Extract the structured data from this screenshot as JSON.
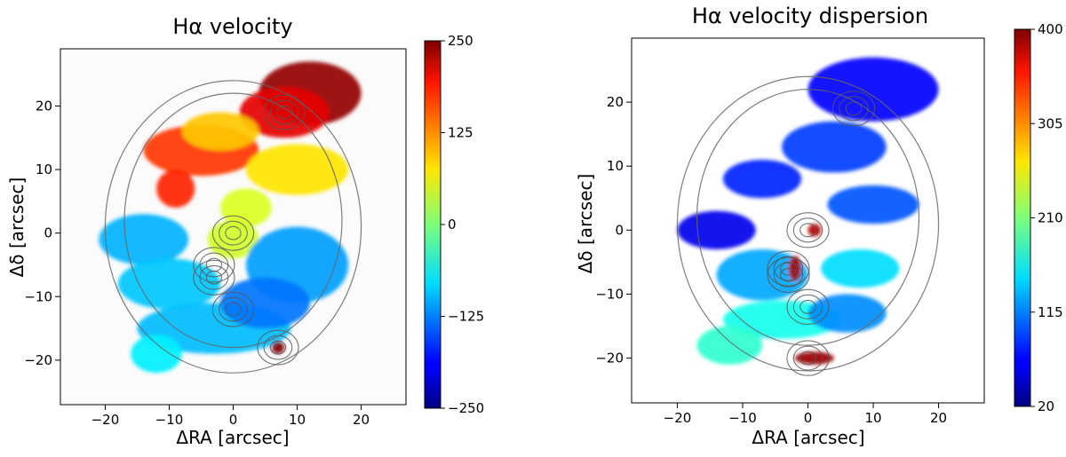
{
  "chart_data": [
    {
      "type": "heatmap",
      "title": "Hα velocity",
      "xlabel": "ΔRA [arcsec]",
      "ylabel": "Δδ [arcsec]",
      "xlim": [
        -27,
        27
      ],
      "ylim": [
        -27,
        29
      ],
      "xticks": [
        -20,
        -10,
        0,
        10,
        20
      ],
      "yticks": [
        -20,
        -10,
        0,
        10,
        20
      ],
      "colorbar": {
        "colormap": "jet",
        "min": -250,
        "max": 250,
        "ticks": [
          250,
          125,
          0,
          -125,
          -250
        ]
      },
      "grid": false,
      "contour_peaks": [
        [
          8,
          19
        ],
        [
          0,
          0
        ],
        [
          -3,
          -5
        ],
        [
          -3,
          -7
        ],
        [
          0,
          -12
        ],
        [
          7,
          -18
        ]
      ],
      "emission_regions": [
        {
          "x": 12,
          "y": 22,
          "rx": 8,
          "ry": 5,
          "value": 240
        },
        {
          "x": 8,
          "y": 19,
          "rx": 7,
          "ry": 4,
          "value": 200
        },
        {
          "x": -5,
          "y": 13,
          "rx": 9,
          "ry": 4,
          "value": 160
        },
        {
          "x": -9,
          "y": 7,
          "rx": 3,
          "ry": 3,
          "value": 170
        },
        {
          "x": -2,
          "y": 16,
          "rx": 6,
          "ry": 3,
          "value": 90
        },
        {
          "x": 10,
          "y": 10,
          "rx": 8,
          "ry": 4,
          "value": 75
        },
        {
          "x": 2,
          "y": 4,
          "rx": 4,
          "ry": 3,
          "value": 45
        },
        {
          "x": -14,
          "y": -1,
          "rx": 7,
          "ry": 4,
          "value": -100
        },
        {
          "x": -10,
          "y": -8,
          "rx": 8,
          "ry": 4,
          "value": -90
        },
        {
          "x": 0,
          "y": -1,
          "rx": 4,
          "ry": 3,
          "value": 40
        },
        {
          "x": 10,
          "y": -5,
          "rx": 8,
          "ry": 6,
          "value": -110
        },
        {
          "x": -3,
          "y": -15,
          "rx": 12,
          "ry": 4,
          "value": -95
        },
        {
          "x": 5,
          "y": -11,
          "rx": 7,
          "ry": 4,
          "value": -130
        },
        {
          "x": -12,
          "y": -19,
          "rx": 4,
          "ry": 3,
          "value": -70
        },
        {
          "x": 7,
          "y": -18,
          "rx": 1,
          "ry": 1,
          "value": 250
        }
      ]
    },
    {
      "type": "heatmap",
      "title": "Hα velocity dispersion",
      "xlabel": "ΔRA [arcsec]",
      "ylabel": "Δδ [arcsec]",
      "xlim": [
        -27,
        27
      ],
      "ylim": [
        -27,
        30
      ],
      "xticks": [
        -20,
        -10,
        0,
        10,
        20
      ],
      "yticks": [
        -20,
        -10,
        0,
        10,
        20
      ],
      "colorbar": {
        "colormap": "jet",
        "min": 20,
        "max": 400,
        "ticks": [
          400,
          305,
          210,
          115,
          20
        ]
      },
      "grid": false,
      "contour_peaks": [
        [
          7,
          19
        ],
        [
          0,
          0
        ],
        [
          -3,
          -6
        ],
        [
          -3,
          -7
        ],
        [
          0,
          -12
        ],
        [
          0,
          -20
        ]
      ],
      "emission_regions": [
        {
          "x": 10,
          "y": 22,
          "rx": 10,
          "ry": 5,
          "value": 70
        },
        {
          "x": 4,
          "y": 13,
          "rx": 8,
          "ry": 4,
          "value": 90
        },
        {
          "x": -7,
          "y": 8,
          "rx": 6,
          "ry": 3,
          "value": 80
        },
        {
          "x": 10,
          "y": 4,
          "rx": 7,
          "ry": 3,
          "value": 100
        },
        {
          "x": -14,
          "y": 0,
          "rx": 6,
          "ry": 3,
          "value": 60
        },
        {
          "x": -7,
          "y": -7,
          "rx": 7,
          "ry": 4,
          "value": 130
        },
        {
          "x": 8,
          "y": -6,
          "rx": 6,
          "ry": 3,
          "value": 150
        },
        {
          "x": -4,
          "y": -14,
          "rx": 9,
          "ry": 3,
          "value": 170
        },
        {
          "x": 6,
          "y": -13,
          "rx": 6,
          "ry": 3,
          "value": 120
        },
        {
          "x": -12,
          "y": -18,
          "rx": 5,
          "ry": 3,
          "value": 180
        },
        {
          "x": 1,
          "y": 0,
          "rx": 1,
          "ry": 1,
          "value": 380
        },
        {
          "x": -2,
          "y": -6,
          "rx": 1,
          "ry": 2,
          "value": 380
        },
        {
          "x": 1,
          "y": -20,
          "rx": 3,
          "ry": 1,
          "value": 390
        }
      ]
    }
  ]
}
